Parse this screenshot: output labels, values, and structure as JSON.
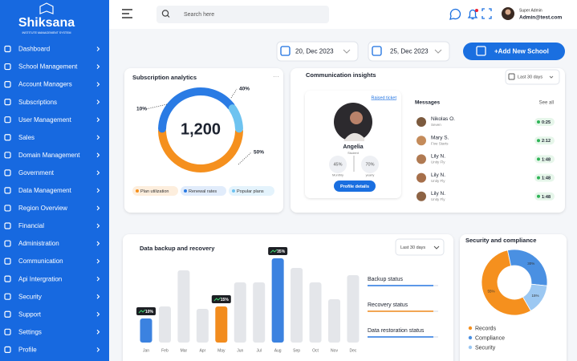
{
  "sidebar": {
    "logo": "Shiksana",
    "tagline": "INSTITUTE MANAGEMENT SYSTEM",
    "menu": [
      "Dashboard",
      "School Management",
      "Account Managers",
      "Subscriptions",
      "User Management",
      "Sales",
      "Domain Management",
      "Government",
      "Data Management",
      "Region Overview",
      "Financial",
      "Administration",
      "Communication",
      "Api Intergration",
      "Security",
      "Support",
      "Settings",
      "Profile"
    ]
  },
  "topbar": {
    "search_placeholder": "Search here",
    "role": "Super Admin",
    "email": "Admin@test.com"
  },
  "toolbar": {
    "start_date": "20, Dec 2023",
    "end_date": "25, Dec 2023",
    "add_button": "+Add New School"
  },
  "subscription": {
    "title": "Subscription analytics",
    "total": "1,200",
    "chart": {
      "type": "donut",
      "categories": [
        "Plan utilization",
        "Renewal rates",
        "Popular plans"
      ],
      "values": [
        50,
        40,
        10
      ],
      "value_labels": [
        "50%",
        "40%",
        "10%"
      ],
      "colors": [
        "#f5901e",
        "#2a7be4",
        "#6ec3f0"
      ]
    }
  },
  "communication": {
    "title": "Communication insights",
    "filter": "Last 30 days",
    "profile": {
      "link": "Raised ticket",
      "name": "Angelia",
      "role": "Student",
      "monthly": "45%",
      "monthly_label": "Monthly",
      "yearly": "70%",
      "yearly_label": "yearly",
      "button": "Profile details"
    },
    "messages": {
      "title": "Messages",
      "see_all": "See all",
      "items": [
        {
          "name": "Nikolas O.",
          "subtitle": "Seven",
          "time": "0:25"
        },
        {
          "name": "Mary S.",
          "subtitle": "Five Starts",
          "time": "2:12"
        },
        {
          "name": "Lily N.",
          "subtitle": "Unity Fly",
          "time": "1:48"
        },
        {
          "name": "Lily N.",
          "subtitle": "Unity Fly",
          "time": "1:48"
        },
        {
          "name": "Lily N.",
          "subtitle": "Unity Fly",
          "time": "1:48"
        }
      ]
    }
  },
  "backup": {
    "title": "Data backup and recovery",
    "filter": "Last 30 days",
    "chart": {
      "type": "bar",
      "categories": [
        "Jan",
        "Feb",
        "Mar",
        "Apr",
        "May",
        "Jun",
        "Jul",
        "Aug",
        "Sep",
        "Oct",
        "Nov",
        "Dec"
      ],
      "values": [
        10,
        15,
        30,
        14,
        15,
        25,
        25,
        35,
        31,
        25,
        18,
        28
      ],
      "value_labels": [
        "10%",
        null,
        null,
        null,
        "15%",
        null,
        null,
        "35%",
        null,
        null,
        null,
        null
      ],
      "colors": [
        "#3b82e0",
        "#e4e6ea",
        "#e4e6ea",
        "#e4e6ea",
        "#f28c1e",
        "#e4e6ea",
        "#e4e6ea",
        "#3b82e0",
        "#e4e6ea",
        "#e4e6ea",
        "#e4e6ea",
        "#e4e6ea"
      ]
    },
    "statuses": [
      "Backup status",
      "Recovery status",
      "Data restoration status"
    ]
  },
  "security": {
    "title": "Security and compliance",
    "chart": {
      "type": "donut",
      "categories": [
        "Records",
        "Compliance",
        "Security"
      ],
      "values": [
        55,
        30,
        15
      ],
      "value_labels": [
        "55%",
        "30%",
        "15%"
      ],
      "colors": [
        "#f5901e",
        "#4a90e2",
        "#9cc8f2"
      ]
    }
  }
}
